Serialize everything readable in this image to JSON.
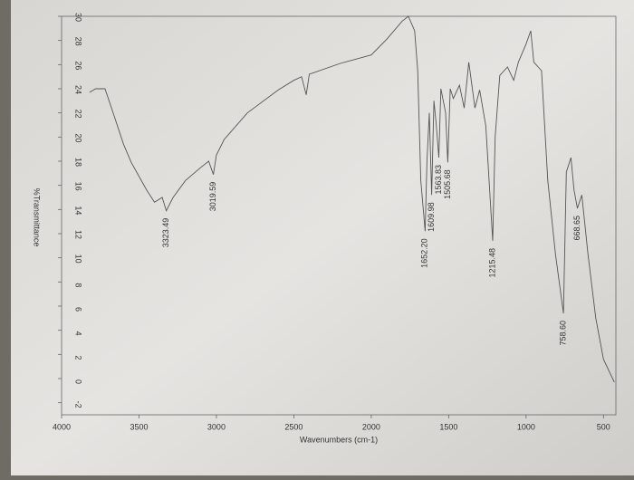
{
  "chart_data": {
    "type": "line",
    "x_label": "Wavenumbers (cm-1)",
    "y_label": "%Transmittance",
    "x": [
      3820,
      3780,
      3720,
      3680,
      3600,
      3550,
      3450,
      3400,
      3350,
      3323.49,
      3280,
      3200,
      3100,
      3050,
      3019.59,
      3000,
      2950,
      2800,
      2600,
      2500,
      2450,
      2420,
      2400,
      2200,
      2000,
      1900,
      1800,
      1760,
      1720,
      1700,
      1680,
      1652.2,
      1640,
      1625,
      1609.98,
      1595,
      1580,
      1563.83,
      1550,
      1520,
      1505.68,
      1490,
      1470,
      1430,
      1400,
      1370,
      1330,
      1300,
      1260,
      1215.48,
      1200,
      1170,
      1120,
      1080,
      1050,
      1000,
      970,
      950,
      900,
      860,
      810,
      758.6,
      740,
      710,
      690,
      668.65,
      640,
      600,
      550,
      500,
      460,
      430
    ],
    "values": [
      23.7,
      24.0,
      24.0,
      22.5,
      19.4,
      17.9,
      15.6,
      14.6,
      15.0,
      13.9,
      15.0,
      16.4,
      17.5,
      18.0,
      16.9,
      18.5,
      19.8,
      22.0,
      23.9,
      24.7,
      25.0,
      23.5,
      25.2,
      26.1,
      26.8,
      28.1,
      29.6,
      30.0,
      28.8,
      25.5,
      16.4,
      12.2,
      18.0,
      22.0,
      15.2,
      23.0,
      21.0,
      18.3,
      24.0,
      22.0,
      17.9,
      24.0,
      23.2,
      24.3,
      22.4,
      26.2,
      22.4,
      23.9,
      20.9,
      11.4,
      20.0,
      25.1,
      25.8,
      24.7,
      26.2,
      27.7,
      28.8,
      26.2,
      25.5,
      16.4,
      10.3,
      5.4,
      17.1,
      18.3,
      15.6,
      14.1,
      15.2,
      10.3,
      5.0,
      1.6,
      0.5,
      -0.3
    ],
    "color": "#555555",
    "xlim": [
      4000,
      420
    ],
    "ylim": [
      -3,
      30
    ],
    "xticks": [
      4000,
      3500,
      3000,
      2500,
      2000,
      1500,
      1000,
      500
    ],
    "yticks": [
      -2,
      0,
      2,
      4,
      6,
      8,
      10,
      12,
      14,
      16,
      18,
      20,
      22,
      24,
      26,
      28,
      30
    ],
    "annotations": [
      {
        "label": "3323.49",
        "x": 3323.49,
        "y": 13.9
      },
      {
        "label": "3019.59",
        "x": 3019.59,
        "y": 16.9
      },
      {
        "label": "1652.20",
        "x": 1652.2,
        "y": 12.2
      },
      {
        "label": "1609.98",
        "x": 1609.98,
        "y": 15.2
      },
      {
        "label": "1563.83",
        "x": 1563.83,
        "y": 18.3
      },
      {
        "label": "1505.68",
        "x": 1505.68,
        "y": 17.9
      },
      {
        "label": "1215.48",
        "x": 1215.48,
        "y": 11.4
      },
      {
        "label": "758.60",
        "x": 758.6,
        "y": 5.4
      },
      {
        "label": "668.65",
        "x": 668.65,
        "y": 14.1
      }
    ]
  }
}
